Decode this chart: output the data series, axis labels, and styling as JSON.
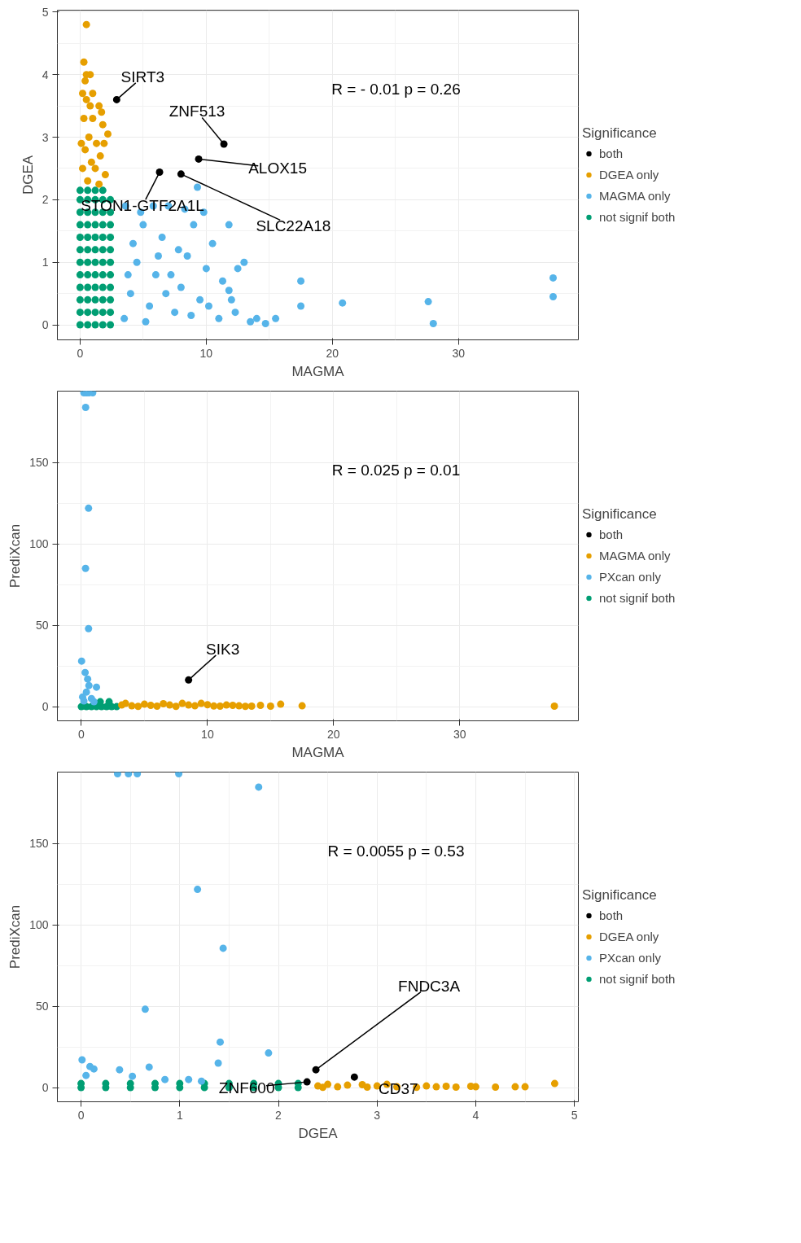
{
  "chart_data": [
    {
      "type": "scatter",
      "xlabel": "MAGMA",
      "ylabel": "DGEA",
      "legend_title": "Significance",
      "legend": "right",
      "grid": true,
      "marker": "circle",
      "xlim": [
        -1.8,
        39.5
      ],
      "ylim": [
        -0.24,
        5.03
      ],
      "xticks": [
        0,
        10,
        20,
        30
      ],
      "yticks": [
        0,
        1,
        2,
        3,
        4,
        5
      ],
      "annotations": [
        "R = - 0.01 p = 0.26",
        {
          "text": "SIRT3",
          "x": 2.9,
          "y": 3.6
        },
        {
          "text": "ZNF513",
          "x": 11.4,
          "y": 2.89
        },
        {
          "text": "ALOX15",
          "x": 9.4,
          "y": 2.65
        },
        {
          "text": "STON1-GTF2A1L",
          "x": 6.3,
          "y": 2.44
        },
        {
          "text": "SLC22A18",
          "x": 8.0,
          "y": 2.41
        }
      ],
      "series": [
        {
          "name": "both",
          "color": "#000000",
          "x": [
            2.9,
            11.4,
            9.4,
            6.3,
            8.0
          ],
          "values": [
            3.6,
            2.89,
            2.65,
            2.44,
            2.41
          ]
        },
        {
          "name": "DGEA only",
          "color": "#e69f00",
          "x": [
            0.5,
            0.3,
            0.5,
            0.8,
            0.2,
            0.5,
            1.5,
            1.8,
            2.2,
            0.3,
            1.0,
            0.7,
            1.3,
            0.4,
            1.6,
            0.9,
            0.2,
            1.2,
            2.0,
            0.6,
            1.5,
            0.1,
            1.0,
            0.4,
            1.7,
            0.8,
            1.9
          ],
          "values": [
            4.8,
            4.2,
            4.0,
            4.0,
            3.7,
            3.6,
            3.5,
            3.2,
            3.05,
            3.3,
            3.3,
            3.0,
            2.9,
            2.8,
            2.7,
            2.6,
            2.5,
            2.5,
            2.4,
            2.3,
            2.25,
            2.9,
            3.7,
            3.9,
            3.4,
            3.5,
            2.9
          ]
        },
        {
          "name": "MAGMA only",
          "color": "#56b4e9",
          "x": [
            3.5,
            4.0,
            4.5,
            5.0,
            3.6,
            4.2,
            5.5,
            6.0,
            6.5,
            7.0,
            7.5,
            8.0,
            8.5,
            9.0,
            9.3,
            9.5,
            10.0,
            10.5,
            11.0,
            11.3,
            11.8,
            12.0,
            12.5,
            13.0,
            13.5,
            14.0,
            14.7,
            15.5,
            3.8,
            5.2,
            6.8,
            7.8,
            8.8,
            10.2,
            4.8,
            6.2,
            9.8,
            12.3,
            7.2,
            5.8,
            8.3,
            11.8,
            17.5,
            17.5,
            20.8,
            27.6,
            28.0,
            37.5,
            37.5
          ],
          "values": [
            0.1,
            0.5,
            1.0,
            1.6,
            1.9,
            1.3,
            0.3,
            0.8,
            1.4,
            1.9,
            0.2,
            0.6,
            1.1,
            1.6,
            2.2,
            0.4,
            0.9,
            1.3,
            0.1,
            0.7,
            1.6,
            0.4,
            0.9,
            1.0,
            0.05,
            0.1,
            0.02,
            0.1,
            0.8,
            0.05,
            0.5,
            1.2,
            0.15,
            0.3,
            1.8,
            1.1,
            1.8,
            0.2,
            0.8,
            1.9,
            1.85,
            0.55,
            0.7,
            0.3,
            0.35,
            0.37,
            0.02,
            0.75,
            0.45
          ]
        },
        {
          "name": "not signif both",
          "color": "#009e73",
          "x": [
            0,
            0.6,
            1.2,
            1.8,
            2.4,
            0,
            0.6,
            1.2,
            1.8,
            2.4,
            0,
            0.6,
            1.2,
            1.8,
            2.4,
            0,
            0.6,
            1.2,
            1.8,
            2.4,
            0,
            0.6,
            1.2,
            1.8,
            2.4,
            0,
            0.6,
            1.2,
            1.8,
            2.4,
            0,
            0.6,
            1.2,
            1.8,
            2.4,
            0,
            0.6,
            1.2,
            1.8,
            2.4,
            0,
            0.6,
            1.2,
            1.8,
            2.4,
            0,
            0.6,
            1.2,
            1.8,
            2.4,
            0,
            0.6,
            1.2,
            1.8,
            2.4,
            0,
            0.6,
            1.2,
            1.8
          ],
          "values": [
            0,
            0,
            0,
            0,
            0,
            0.2,
            0.2,
            0.2,
            0.2,
            0.2,
            0.4,
            0.4,
            0.4,
            0.4,
            0.4,
            0.6,
            0.6,
            0.6,
            0.6,
            0.6,
            0.8,
            0.8,
            0.8,
            0.8,
            0.8,
            1.0,
            1.0,
            1.0,
            1.0,
            1.0,
            1.2,
            1.2,
            1.2,
            1.2,
            1.2,
            1.4,
            1.4,
            1.4,
            1.4,
            1.4,
            1.6,
            1.6,
            1.6,
            1.6,
            1.6,
            1.8,
            1.8,
            1.8,
            1.8,
            1.8,
            2.0,
            2.0,
            2.0,
            2.0,
            2.0,
            2.15,
            2.15,
            2.15,
            2.15
          ]
        }
      ]
    },
    {
      "type": "scatter",
      "xlabel": "MAGMA",
      "ylabel": "PrediXcan",
      "legend_title": "Significance",
      "legend": "right",
      "grid": true,
      "marker": "circle",
      "xlim": [
        -1.9,
        39.4
      ],
      "ylim": [
        -8.7,
        194
      ],
      "xticks": [
        0,
        10,
        20,
        30
      ],
      "yticks": [
        0,
        50,
        100,
        150
      ],
      "annotations": [
        "R = 0.025 p = 0.01",
        {
          "text": "SIK3",
          "x": 8.5,
          "y": 16.4
        }
      ],
      "series": [
        {
          "name": "both",
          "color": "#000000",
          "x": [
            8.5
          ],
          "values": [
            16.4
          ]
        },
        {
          "name": "MAGMA only",
          "color": "#e69f00",
          "x": [
            3.2,
            4.0,
            5.0,
            6.0,
            7.0,
            8.0,
            9.0,
            10.0,
            11.0,
            12.0,
            13.0,
            15.0,
            17.5,
            37.5,
            3.5,
            4.5,
            5.5,
            6.5,
            7.5,
            8.5,
            9.5,
            10.5,
            11.5,
            12.5,
            13.5,
            14.2,
            15.8
          ],
          "values": [
            1,
            0.5,
            1.5,
            0.3,
            1,
            2,
            0.5,
            1.2,
            0.3,
            0.8,
            0.2,
            0.3,
            0.5,
            0.3,
            2,
            0.2,
            0.8,
            1.8,
            0.2,
            1,
            2,
            0.4,
            1,
            0.5,
            0.3,
            0.8,
            1.5
          ]
        },
        {
          "name": "PXcan only",
          "color": "#56b4e9",
          "x": [
            0.2,
            0.4,
            0.6,
            0.9,
            0.34,
            0.57,
            0.33,
            0.57,
            0.02,
            0.3,
            0.5,
            0.6,
            1.2,
            0.1,
            0.8,
            0.4,
            0.2,
            1.0
          ],
          "values": [
            193,
            193,
            193,
            193,
            184,
            122,
            85,
            48,
            28,
            21,
            17,
            13,
            12,
            6,
            5,
            9,
            3.5,
            3
          ]
        },
        {
          "name": "not signif both",
          "color": "#009e73",
          "x": [
            0,
            0.4,
            0.8,
            1.2,
            1.6,
            2.0,
            2.4,
            2.8,
            1.5,
            2.2
          ],
          "values": [
            0,
            0,
            0,
            0,
            0,
            0,
            0,
            0,
            3,
            3
          ]
        }
      ]
    },
    {
      "type": "scatter",
      "xlabel": "DGEA",
      "ylabel": "PrediXcan",
      "legend_title": "Significance",
      "legend": "right",
      "grid": true,
      "marker": "circle",
      "xlim": [
        -0.24,
        5.04
      ],
      "ylim": [
        -8.7,
        194
      ],
      "xticks": [
        0,
        1,
        2,
        3,
        4,
        5
      ],
      "yticks": [
        0,
        50,
        100,
        150
      ],
      "annotations": [
        "R = 0.0055 p = 0.53",
        {
          "text": "FNDC3A",
          "x": 2.38,
          "y": 11
        },
        {
          "text": "ZNF600",
          "x": 2.29,
          "y": 3.5
        },
        {
          "text": "CD37",
          "x": 2.77,
          "y": 6.5
        }
      ],
      "series": [
        {
          "name": "both",
          "color": "#000000",
          "x": [
            2.38,
            2.29,
            2.77
          ],
          "values": [
            11,
            3.5,
            6.5
          ]
        },
        {
          "name": "DGEA only",
          "color": "#e69f00",
          "x": [
            2.4,
            2.5,
            2.6,
            2.7,
            2.9,
            3.0,
            3.1,
            3.2,
            3.4,
            3.5,
            3.6,
            3.7,
            3.8,
            4.0,
            3.95,
            4.2,
            4.4,
            4.5,
            4.8,
            2.45,
            2.85
          ],
          "values": [
            1,
            2,
            0.5,
            1.5,
            0.3,
            1,
            2,
            0.5,
            0.2,
            1,
            0.5,
            0.8,
            0.3,
            0.5,
            0.8,
            0.3,
            0.5,
            0.5,
            2.5,
            0.2,
            1.8
          ]
        },
        {
          "name": "PXcan only",
          "color": "#56b4e9",
          "x": [
            0.37,
            0.48,
            0.57,
            0.99,
            1.8,
            1.18,
            1.44,
            0.65,
            1.41,
            1.9,
            1.39,
            0.01,
            0.09,
            0.13,
            0.39,
            0.69,
            0.05,
            0.52,
            1.09,
            0.85,
            1.22
          ],
          "values": [
            193,
            193,
            193,
            193,
            184.8,
            121.9,
            85.7,
            48.2,
            28,
            21.3,
            15.1,
            17.1,
            13,
            11.5,
            11,
            12.6,
            7.5,
            7,
            5,
            5,
            4
          ]
        },
        {
          "name": "not signif both",
          "color": "#009e73",
          "x": [
            0,
            0.25,
            0.5,
            0.75,
            1.0,
            1.25,
            1.5,
            1.75,
            2.0,
            2.2,
            0,
            0.25,
            0.5,
            0.75,
            1.0,
            1.25,
            1.5,
            1.75,
            2.0,
            2.2
          ],
          "values": [
            0,
            0,
            0,
            0,
            0,
            0,
            0,
            0,
            0,
            0,
            2.5,
            2.5,
            2.5,
            2.5,
            2.5,
            2.5,
            2.5,
            2.5,
            2.5,
            2.5
          ]
        }
      ]
    }
  ]
}
